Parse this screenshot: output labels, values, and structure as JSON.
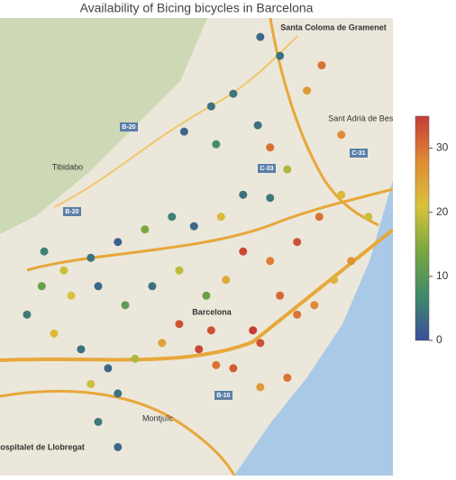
{
  "chart_data": {
    "type": "scatter",
    "title": "Availability of Bicing bicycles in Barcelona",
    "xlim": [
      2.07,
      2.23
    ],
    "ylim": [
      41.33,
      41.475
    ],
    "x": [
      2.165,
      2.156,
      2.145,
      2.158,
      2.175,
      2.18,
      2.195,
      2.201,
      2.209,
      2.187,
      2.169,
      2.16,
      2.149,
      2.14,
      2.129,
      2.118,
      2.107,
      2.096,
      2.087,
      2.081,
      2.092,
      2.103,
      2.114,
      2.125,
      2.136,
      2.143,
      2.151,
      2.158,
      2.165,
      2.176,
      2.184,
      2.191,
      2.198,
      2.206,
      2.213,
      2.22,
      2.209,
      2.2,
      2.191,
      2.18,
      2.169,
      2.162,
      2.154,
      2.143,
      2.132,
      2.121,
      2.11,
      2.099,
      2.088,
      2.118,
      2.11,
      2.118,
      2.107,
      2.176,
      2.187,
      2.173,
      2.156,
      2.18,
      2.184,
      2.176
    ],
    "y": [
      41.451,
      41.447,
      41.439,
      41.435,
      41.441,
      41.434,
      41.452,
      41.46,
      41.438,
      41.427,
      41.419,
      41.412,
      41.409,
      41.412,
      41.408,
      41.404,
      41.399,
      41.395,
      41.39,
      41.381,
      41.375,
      41.37,
      41.364,
      41.367,
      41.372,
      41.378,
      41.37,
      41.365,
      41.364,
      41.372,
      41.387,
      41.381,
      41.384,
      41.392,
      41.398,
      41.412,
      41.419,
      41.412,
      41.404,
      41.398,
      41.401,
      41.392,
      41.387,
      41.395,
      41.39,
      41.384,
      41.39,
      41.387,
      41.401,
      41.356,
      41.347,
      41.339,
      41.359,
      41.358,
      41.361,
      41.376,
      41.376,
      41.418,
      41.463,
      41.469
    ],
    "values": [
      5,
      4,
      3,
      8,
      4,
      30,
      26,
      30,
      28,
      18,
      4,
      22,
      3,
      6,
      14,
      2,
      4,
      20,
      12,
      5,
      22,
      4,
      3,
      18,
      25,
      33,
      34,
      30,
      32,
      33,
      31,
      30,
      28,
      23,
      27,
      20,
      22,
      30,
      33,
      29,
      34,
      24,
      12,
      19,
      4,
      11,
      3,
      21,
      6,
      4,
      5,
      3,
      20,
      26,
      30,
      35,
      33,
      5,
      4,
      3
    ],
    "colorbar": {
      "lim": [
        0,
        35
      ],
      "ticks": [
        0,
        10,
        20,
        30
      ],
      "colors": [
        "#3a4f9c",
        "#3f8a6a",
        "#7aa83e",
        "#d9c23c",
        "#e08a34",
        "#c63b35"
      ]
    },
    "map_labels": [
      "Santa Coloma de Gramenet",
      "Sant Adrià de Besòs",
      "Tibidabo",
      "Barcelona",
      "Montjuïc",
      "L'Hospitalet de Llobregat",
      "B-20",
      "B-10",
      "C-31",
      "B-20",
      "C-33"
    ]
  }
}
